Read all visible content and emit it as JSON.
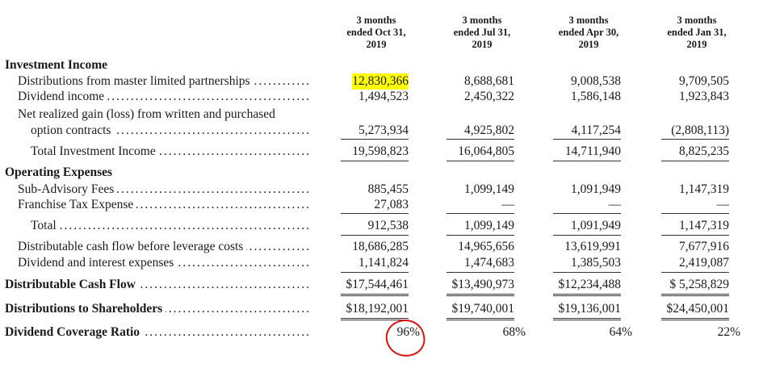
{
  "columns": [
    {
      "line1": "3 months",
      "line2": "ended Oct 31,",
      "line3": "2019"
    },
    {
      "line1": "3 months",
      "line2": "ended Jul 31,",
      "line3": "2019"
    },
    {
      "line1": "3 months",
      "line2": "ended Apr 30,",
      "line3": "2019"
    },
    {
      "line1": "3 months",
      "line2": "ended Jan 31,",
      "line3": "2019"
    }
  ],
  "rows": [
    {
      "label": "Investment Income",
      "style": "section",
      "values": []
    },
    {
      "label": "Distributions from master limited partnerships",
      "style": "item",
      "leader": true,
      "values": [
        "12,830,366",
        "8,688,681",
        "9,008,538",
        "9,709,505"
      ],
      "highlight_first": true
    },
    {
      "label": "Dividend income",
      "style": "item",
      "leader": true,
      "values": [
        "1,494,523",
        "2,450,322",
        "1,586,148",
        "1,923,843"
      ]
    },
    {
      "label": "Net realized gain (loss) from written and purchased",
      "style": "item",
      "values": []
    },
    {
      "label": "option contracts",
      "style": "sub",
      "leader": true,
      "values": [
        "5,273,934",
        "4,925,802",
        "4,117,254",
        "(2,808,113)"
      ]
    },
    {
      "label": "Total Investment Income",
      "style": "sub",
      "leader": true,
      "values": [
        "19,598,823",
        "16,064,805",
        "14,711,940",
        "8,825,235"
      ]
    },
    {
      "label": "Operating Expenses",
      "style": "section",
      "values": []
    },
    {
      "label": "Sub-Advisory Fees",
      "style": "item",
      "leader": true,
      "values": [
        "885,455",
        "1,099,149",
        "1,091,949",
        "1,147,319"
      ]
    },
    {
      "label": "Franchise Tax Expense",
      "style": "item",
      "leader": true,
      "values": [
        "27,083",
        "—",
        "—",
        "—"
      ]
    },
    {
      "label": "Total",
      "style": "sub",
      "leader": true,
      "values": [
        "912,538",
        "1,099,149",
        "1,091,949",
        "1,147,319"
      ]
    },
    {
      "label": "Distributable cash flow before leverage costs",
      "style": "item",
      "leader": true,
      "values": [
        "18,686,285",
        "14,965,656",
        "13,619,991",
        "7,677,916"
      ]
    },
    {
      "label": "Dividend and interest expenses",
      "style": "item",
      "leader": true,
      "values": [
        "1,141,824",
        "1,474,683",
        "1,385,503",
        "2,419,087"
      ]
    },
    {
      "label": "Distributable Cash Flow",
      "style": "section",
      "leader": true,
      "values": [
        "$17,544,461",
        "$13,490,973",
        "$12,234,488",
        "$ 5,258,829"
      ]
    },
    {
      "label": "Distributions to Shareholders",
      "style": "section",
      "leader": true,
      "values": [
        "$18,192,001",
        "$19,740,001",
        "$19,136,001",
        "$24,450,001"
      ]
    },
    {
      "label": "Dividend Coverage Ratio",
      "style": "section",
      "leader": true,
      "percent": true,
      "values": [
        "96%",
        "68%",
        "64%",
        "22%"
      ],
      "circle_first": true
    }
  ],
  "colors": {
    "highlight": "#ffff00",
    "annotation_circle": "#e01010"
  }
}
